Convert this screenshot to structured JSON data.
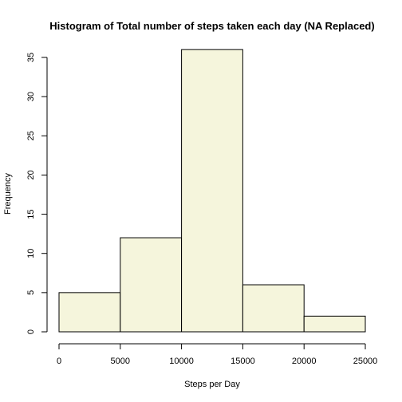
{
  "chart_data": {
    "type": "bar",
    "title": "Histogram of Total number of steps taken each day (NA Replaced)",
    "xlabel": "Steps per Day",
    "ylabel": "Frequency",
    "bins": [
      {
        "from": 0,
        "to": 5000,
        "count": 5
      },
      {
        "from": 5000,
        "to": 10000,
        "count": 12
      },
      {
        "from": 10000,
        "to": 15000,
        "count": 36
      },
      {
        "from": 15000,
        "to": 20000,
        "count": 6
      },
      {
        "from": 20000,
        "to": 25000,
        "count": 2
      }
    ],
    "xlim": [
      0,
      25000
    ],
    "ylim": [
      0,
      35
    ],
    "x_ticks": [
      0,
      5000,
      10000,
      15000,
      20000,
      25000
    ],
    "y_ticks": [
      0,
      5,
      10,
      15,
      20,
      25,
      30,
      35
    ],
    "bar_color": "#f5f5dc",
    "grid": false,
    "legend": "none"
  }
}
